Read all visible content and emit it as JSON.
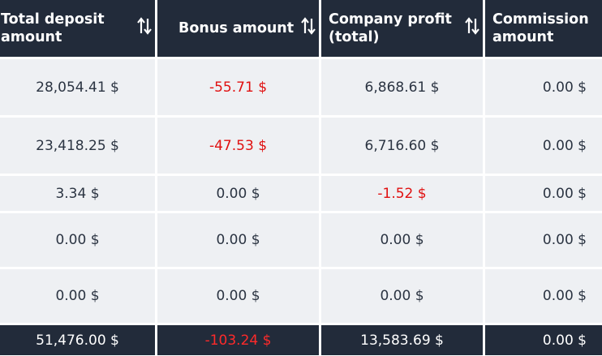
{
  "headers": [
    {
      "label": "Total deposit amount",
      "sortable": true,
      "icon": "sort-arrows-icon"
    },
    {
      "label": "Bonus amount",
      "sortable": true,
      "icon": "sort-arrows-icon"
    },
    {
      "label": "Company profit (total)",
      "sortable": true,
      "icon": "sort-arrows-icon"
    },
    {
      "label": "Commission amount",
      "sortable": false
    }
  ],
  "rows": [
    [
      "28,054.41 $",
      "-55.71 $",
      "6,868.61 $",
      "0.00 $"
    ],
    [
      "23,418.25 $",
      "-47.53 $",
      "6,716.60 $",
      "0.00 $"
    ],
    [
      "3.34 $",
      "0.00 $",
      "-1.52 $",
      "0.00 $"
    ],
    [
      "0.00 $",
      "0.00 $",
      "0.00 $",
      "0.00 $"
    ],
    [
      "0.00 $",
      "0.00 $",
      "0.00 $",
      "0.00 $"
    ]
  ],
  "totals": [
    "51,476.00 $",
    "-103.24 $",
    "13,583.69 $",
    "0.00 $"
  ],
  "colors": {
    "header_bg": "#222b3a",
    "row_bg": "#eef0f3",
    "negative": "#e01010",
    "text": "#2b3442"
  }
}
